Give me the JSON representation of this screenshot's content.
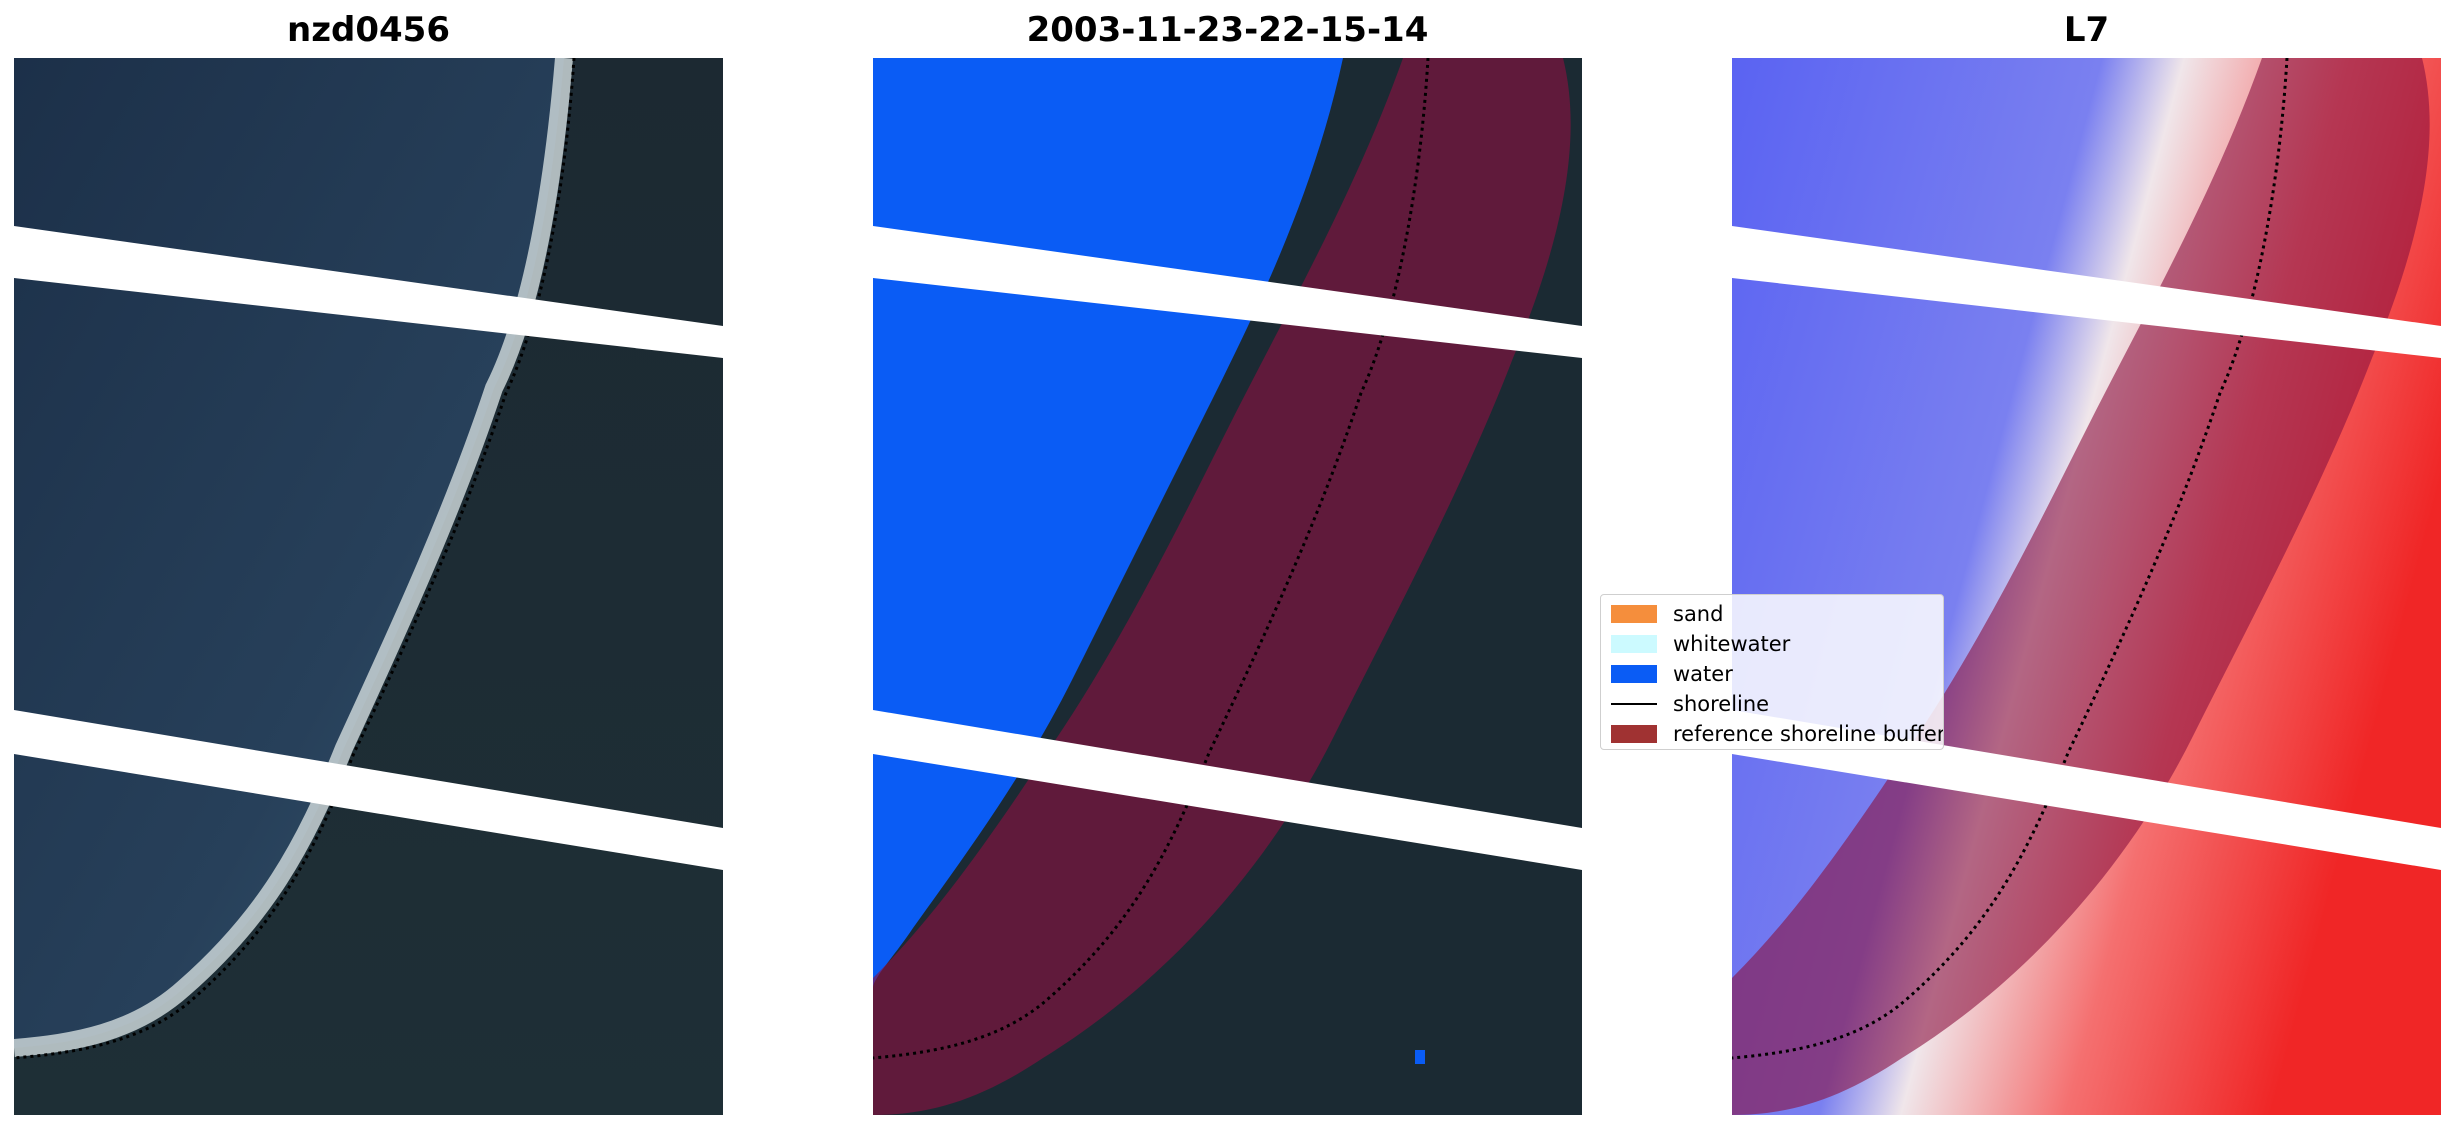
{
  "panels": [
    {
      "title": "nzd0456"
    },
    {
      "title": "2003-11-23-22-15-14"
    },
    {
      "title": "L7"
    }
  ],
  "legend": {
    "items": [
      {
        "label": "sand",
        "color": "#f58e3c",
        "kind": "patch"
      },
      {
        "label": "whitewater",
        "color": "#ccfaff",
        "kind": "patch"
      },
      {
        "label": "water",
        "color": "#0a5cf5",
        "kind": "patch"
      },
      {
        "label": "shoreline",
        "color": "#000000",
        "kind": "line"
      },
      {
        "label": "reference shoreline buffer",
        "color": "#a03232",
        "kind": "patch"
      }
    ]
  },
  "colors": {
    "water_deep": "#1f3450",
    "land_dark": "#1b2a34",
    "beach_white": "#d6dcdc",
    "classified_water": "#0a5cf5",
    "buffer_overlay": "#8a1040",
    "ndwi_water": "#4c55f0",
    "ndwi_land": "#f03030"
  }
}
